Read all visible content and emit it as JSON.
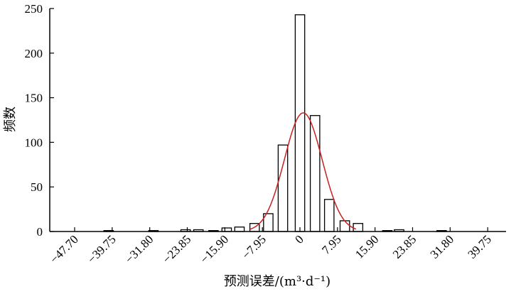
{
  "chart_data": {
    "type": "bar",
    "xlabel": "预测误差/(m³·d⁻¹)",
    "ylabel": "频数",
    "ylim": [
      0,
      250
    ],
    "y_ticks": [
      0,
      50,
      100,
      150,
      200,
      250
    ],
    "x_ticks": [
      {
        "value": -47.7,
        "label": "−47.70"
      },
      {
        "value": -39.75,
        "label": "−39.75"
      },
      {
        "value": -31.8,
        "label": "−31.80"
      },
      {
        "value": -23.85,
        "label": "−23.85"
      },
      {
        "value": -15.9,
        "label": "−15.90"
      },
      {
        "value": -7.95,
        "label": "−7.95"
      },
      {
        "value": 0,
        "label": "0"
      },
      {
        "value": 7.95,
        "label": "7.95"
      },
      {
        "value": 15.9,
        "label": "15.90"
      },
      {
        "value": 23.85,
        "label": "23.85"
      },
      {
        "value": 31.8,
        "label": "31.80"
      },
      {
        "value": 39.75,
        "label": "39.75"
      }
    ],
    "xlim": [
      -47.7,
      41.5
    ],
    "bin_width": 2.0,
    "bins": [
      {
        "x": -40.5,
        "count": 1
      },
      {
        "x": -31.0,
        "count": 1
      },
      {
        "x": -24.2,
        "count": 2
      },
      {
        "x": -21.5,
        "count": 2
      },
      {
        "x": -18.3,
        "count": 1
      },
      {
        "x": -15.5,
        "count": 4
      },
      {
        "x": -12.8,
        "count": 5
      },
      {
        "x": -9.6,
        "count": 9
      },
      {
        "x": -6.7,
        "count": 20
      },
      {
        "x": -3.6,
        "count": 97
      },
      {
        "x": 0.0,
        "count": 243
      },
      {
        "x": 3.2,
        "count": 130
      },
      {
        "x": 6.2,
        "count": 36
      },
      {
        "x": 9.5,
        "count": 12
      },
      {
        "x": 12.3,
        "count": 9
      },
      {
        "x": 18.5,
        "count": 1
      },
      {
        "x": 21.0,
        "count": 2
      },
      {
        "x": 30.0,
        "count": 1
      }
    ],
    "fit_curve": {
      "type": "normal",
      "mean": 0.7,
      "sigma": 4.0,
      "peak": 133,
      "color": "#cc1f1f"
    },
    "bar_color": "#ffffff",
    "bar_edge_color": "#000000"
  }
}
